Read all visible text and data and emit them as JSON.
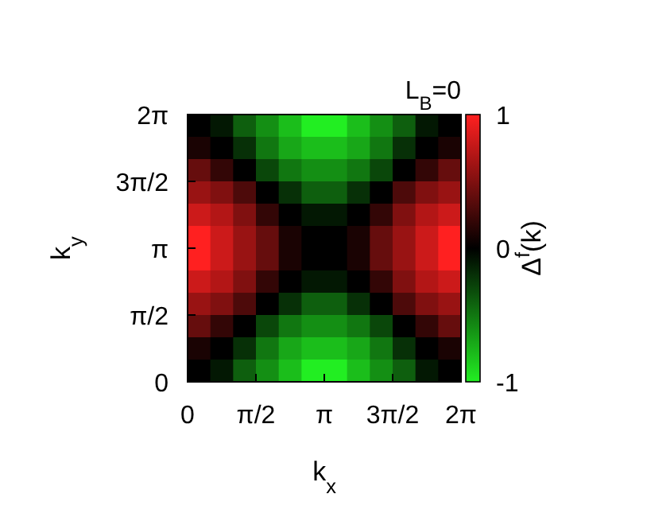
{
  "chart_data": {
    "type": "heatmap",
    "title": "L$_{B}$=0",
    "xlabel": "k$_{x}$",
    "ylabel": "k$_{y}$",
    "clabel": "Δ$^{f}$(k)",
    "x": [
      0.2618,
      0.7854,
      1.309,
      1.8326,
      2.3562,
      2.8798,
      3.4034,
      3.927,
      4.4506,
      4.9742,
      5.4978,
      6.0214
    ],
    "y": [
      6.0214,
      5.4978,
      4.9742,
      4.4506,
      3.927,
      3.4034,
      2.8798,
      2.3562,
      1.8326,
      1.309,
      0.7854,
      0.2618
    ],
    "xlim": [
      0,
      6.2832
    ],
    "xticks": [
      {
        "value": 0,
        "label": "0"
      },
      {
        "value": 1.5708,
        "label": "π/2"
      },
      {
        "value": 3.1416,
        "label": "π"
      },
      {
        "value": 4.7124,
        "label": "3π/2"
      },
      {
        "value": 6.2832,
        "label": "2π"
      }
    ],
    "ylim": [
      0,
      6.2832
    ],
    "yticks": [
      {
        "value": 0,
        "label": "0"
      },
      {
        "value": 1.5708,
        "label": "π/2"
      },
      {
        "value": 3.1416,
        "label": "π"
      },
      {
        "value": 4.7124,
        "label": "3π/2"
      },
      {
        "value": 6.2832,
        "label": "2π"
      }
    ],
    "clim": [
      -1,
      1
    ],
    "cticks": [
      -1,
      0,
      1
    ],
    "colors": [
      "#22ee22",
      "#000000",
      "#ff2020"
    ],
    "cells": [
      [
        0,
        -0.1,
        -0.4,
        -0.6,
        -0.8,
        -1,
        -1,
        -0.8,
        -0.6,
        -0.4,
        -0.1,
        0
      ],
      [
        0.1,
        0,
        -0.2,
        -0.5,
        -0.7,
        -0.8,
        -0.8,
        -0.7,
        -0.5,
        -0.2,
        0,
        0.1
      ],
      [
        0.4,
        0.2,
        0,
        -0.3,
        -0.5,
        -0.6,
        -0.6,
        -0.5,
        -0.3,
        0,
        0.2,
        0.4
      ],
      [
        0.6,
        0.5,
        0.3,
        0,
        -0.2,
        -0.4,
        -0.4,
        -0.2,
        0,
        0.3,
        0.5,
        0.6
      ],
      [
        0.8,
        0.7,
        0.5,
        0.2,
        0,
        -0.1,
        -0.1,
        0,
        0.2,
        0.5,
        0.7,
        0.8
      ],
      [
        1,
        0.8,
        0.6,
        0.4,
        0.1,
        0,
        0,
        0.1,
        0.4,
        0.6,
        0.8,
        1
      ],
      [
        1,
        0.8,
        0.6,
        0.4,
        0.1,
        0,
        0,
        0.1,
        0.4,
        0.6,
        0.8,
        1
      ],
      [
        0.8,
        0.7,
        0.5,
        0.2,
        0,
        -0.1,
        -0.1,
        0,
        0.2,
        0.5,
        0.7,
        0.8
      ],
      [
        0.6,
        0.5,
        0.3,
        0,
        -0.2,
        -0.4,
        -0.4,
        -0.2,
        0,
        0.3,
        0.5,
        0.6
      ],
      [
        0.4,
        0.2,
        0,
        -0.3,
        -0.5,
        -0.6,
        -0.6,
        -0.5,
        -0.3,
        0,
        0.2,
        0.4
      ],
      [
        0.1,
        0,
        -0.2,
        -0.5,
        -0.7,
        -0.8,
        -0.8,
        -0.7,
        -0.5,
        -0.2,
        0,
        0.1
      ],
      [
        0,
        -0.1,
        -0.4,
        -0.6,
        -0.8,
        -1,
        -1,
        -0.8,
        -0.6,
        -0.4,
        -0.1,
        0
      ]
    ]
  }
}
